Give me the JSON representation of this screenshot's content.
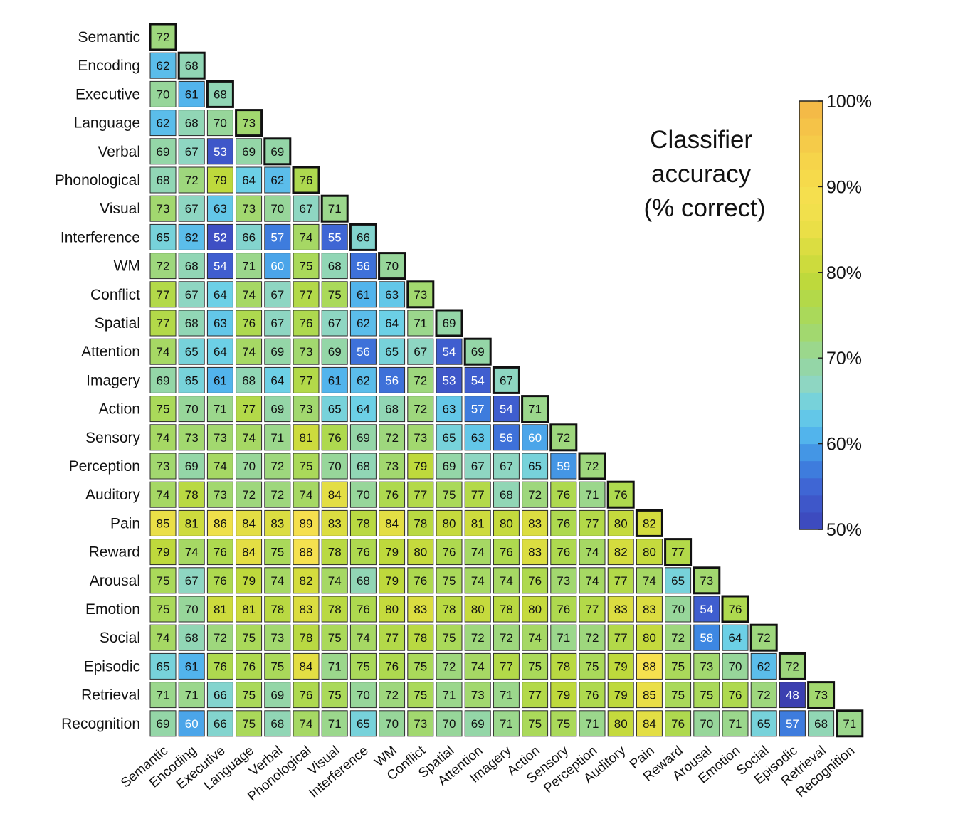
{
  "chart_data": {
    "type": "heatmap",
    "title": "",
    "colorbar_title_lines": [
      "Classifier",
      "accuracy",
      "(% correct)"
    ],
    "colorbar_ticks": [
      "100%",
      "90%",
      "80%",
      "70%",
      "60%",
      "50%"
    ],
    "colorbar_range": [
      50,
      100
    ],
    "labels": [
      "Semantic",
      "Encoding",
      "Executive",
      "Language",
      "Verbal",
      "Phonological",
      "Visual",
      "Interference",
      "WM",
      "Conflict",
      "Spatial",
      "Attention",
      "Imagery",
      "Action",
      "Sensory",
      "Perception",
      "Auditory",
      "Pain",
      "Reward",
      "Arousal",
      "Emotion",
      "Social",
      "Episodic",
      "Retrieval",
      "Recognition"
    ],
    "matrix": [
      [
        72
      ],
      [
        62,
        68
      ],
      [
        70,
        61,
        68
      ],
      [
        62,
        68,
        70,
        73
      ],
      [
        69,
        67,
        53,
        69,
        69
      ],
      [
        68,
        72,
        79,
        64,
        62,
        76
      ],
      [
        73,
        67,
        63,
        73,
        70,
        67,
        71
      ],
      [
        65,
        62,
        52,
        66,
        57,
        74,
        55,
        66
      ],
      [
        72,
        68,
        54,
        71,
        60,
        75,
        68,
        56,
        70
      ],
      [
        77,
        67,
        64,
        74,
        67,
        77,
        75,
        61,
        63,
        73
      ],
      [
        77,
        68,
        63,
        76,
        67,
        76,
        67,
        62,
        64,
        71,
        69
      ],
      [
        74,
        65,
        64,
        74,
        69,
        73,
        69,
        56,
        65,
        67,
        54,
        69
      ],
      [
        69,
        65,
        61,
        68,
        64,
        77,
        61,
        62,
        56,
        72,
        53,
        54,
        67
      ],
      [
        75,
        70,
        71,
        77,
        69,
        73,
        65,
        64,
        68,
        72,
        63,
        57,
        54,
        71
      ],
      [
        74,
        73,
        73,
        74,
        71,
        81,
        76,
        69,
        72,
        73,
        65,
        63,
        56,
        60,
        72
      ],
      [
        73,
        69,
        74,
        70,
        72,
        75,
        70,
        68,
        73,
        79,
        69,
        67,
        67,
        65,
        59,
        72
      ],
      [
        74,
        78,
        73,
        72,
        72,
        74,
        84,
        70,
        76,
        77,
        75,
        77,
        68,
        72,
        76,
        71,
        76
      ],
      [
        85,
        81,
        86,
        84,
        83,
        89,
        83,
        78,
        84,
        78,
        80,
        81,
        80,
        83,
        76,
        77,
        80,
        82
      ],
      [
        79,
        74,
        76,
        84,
        75,
        88,
        78,
        76,
        79,
        80,
        76,
        74,
        76,
        83,
        76,
        74,
        82,
        80,
        77
      ],
      [
        75,
        67,
        76,
        79,
        74,
        82,
        74,
        68,
        79,
        76,
        75,
        74,
        74,
        76,
        73,
        74,
        77,
        74,
        65,
        73
      ],
      [
        75,
        70,
        81,
        81,
        78,
        83,
        78,
        76,
        80,
        83,
        78,
        80,
        78,
        80,
        76,
        77,
        83,
        83,
        70,
        54,
        76
      ],
      [
        74,
        68,
        72,
        75,
        73,
        78,
        75,
        74,
        77,
        78,
        75,
        72,
        72,
        74,
        71,
        72,
        77,
        80,
        72,
        58,
        64,
        72
      ],
      [
        65,
        61,
        76,
        76,
        75,
        84,
        71,
        75,
        76,
        75,
        72,
        74,
        77,
        75,
        78,
        75,
        79,
        88,
        75,
        73,
        70,
        62,
        72
      ],
      [
        71,
        71,
        66,
        75,
        69,
        76,
        75,
        70,
        72,
        75,
        71,
        73,
        71,
        77,
        79,
        76,
        79,
        85,
        75,
        75,
        76,
        72,
        48,
        73
      ],
      [
        69,
        60,
        66,
        75,
        68,
        74,
        71,
        65,
        70,
        73,
        70,
        69,
        71,
        75,
        75,
        71,
        80,
        84,
        76,
        70,
        71,
        65,
        57,
        68,
        71
      ]
    ],
    "diagonal_highlighted": true
  }
}
